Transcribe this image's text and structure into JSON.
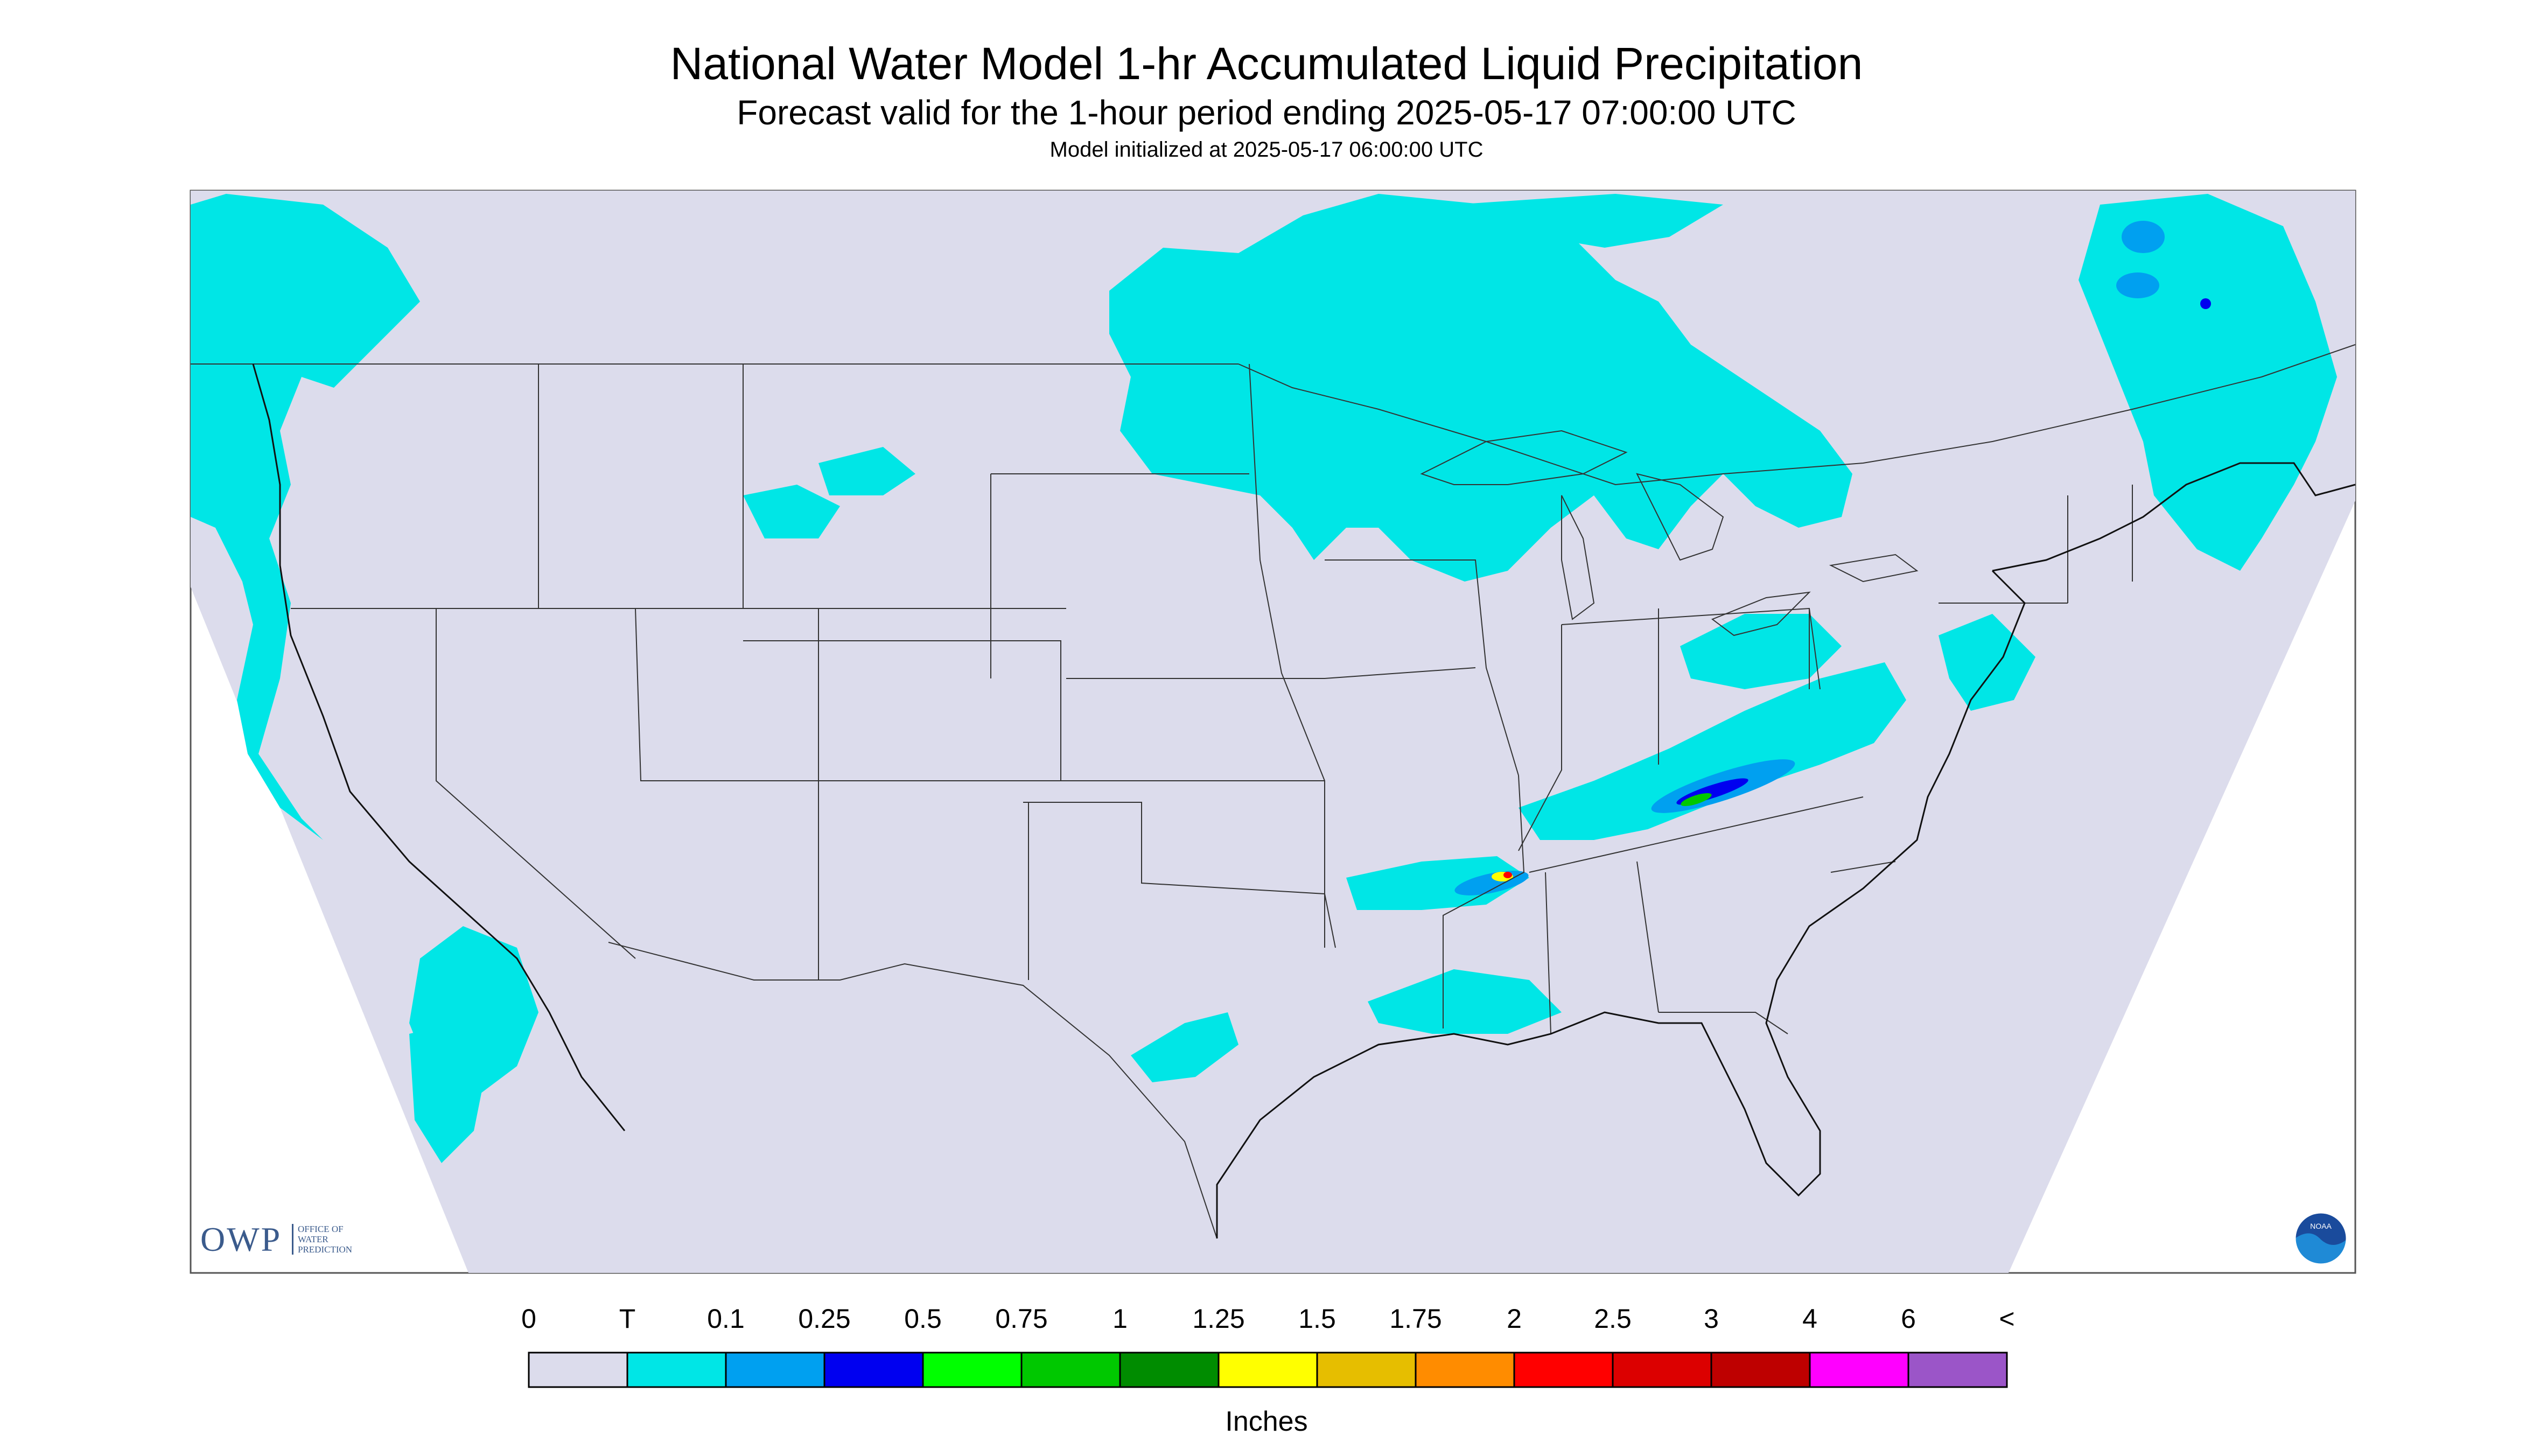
{
  "title": "National Water Model 1-hr Accumulated Liquid Precipitation",
  "subtitle": "Forecast valid for the 1-hour period ending 2025-05-17 07:00:00 UTC",
  "init_line": "Model initialized at 2025-05-17 06:00:00 UTC",
  "legend": {
    "units": "Inches",
    "labels": [
      "0",
      "T",
      "0.1",
      "0.25",
      "0.5",
      "0.75",
      "1",
      "1.25",
      "1.5",
      "1.75",
      "2",
      "2.5",
      "3",
      "4",
      "6",
      "<"
    ],
    "colors": [
      "#dcdcec",
      "#00e6e6",
      "#00a0f0",
      "#0000f0",
      "#00ff00",
      "#00c800",
      "#008c00",
      "#ffff00",
      "#e6be00",
      "#ff8c00",
      "#ff0000",
      "#dc0000",
      "#be0000",
      "#ff00ff",
      "#9b55c8"
    ]
  },
  "logos": {
    "owp": "OWP",
    "owp_sub": "OFFICE OF WATER PREDICTION",
    "noaa": "NOAA"
  },
  "map": {
    "background_color": "#dcdcec",
    "region": "Contiguous United States"
  }
}
